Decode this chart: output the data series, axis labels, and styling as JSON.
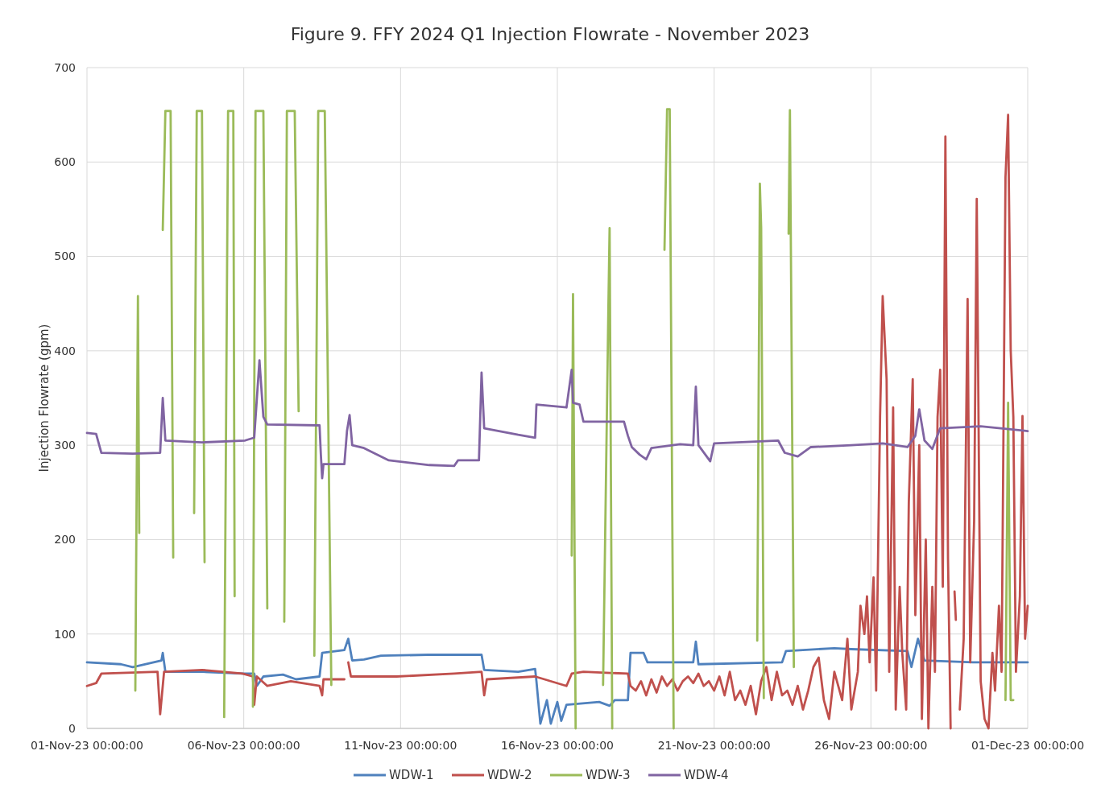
{
  "chart_data": {
    "type": "line",
    "title": "Figure 9.  FFY 2024 Q1 Injection Flowrate - November 2023",
    "ylabel": "Injection Flowrate (gpm)",
    "xlim": [
      "2023-11-01T00:00",
      "2023-12-01T00:00"
    ],
    "xticks": [
      {
        "value": "2023-11-01T00:00",
        "label": "01-Nov-23 00:00:00"
      },
      {
        "value": "2023-11-06T00:00",
        "label": "06-Nov-23 00:00:00"
      },
      {
        "value": "2023-11-11T00:00",
        "label": "11-Nov-23 00:00:00"
      },
      {
        "value": "2023-11-16T00:00",
        "label": "16-Nov-23 00:00:00"
      },
      {
        "value": "2023-11-21T00:00",
        "label": "21-Nov-23 00:00:00"
      },
      {
        "value": "2023-11-26T00:00",
        "label": "26-Nov-23 00:00:00"
      },
      {
        "value": "2023-12-01T00:00",
        "label": "01-Dec-23 00:00:00"
      }
    ],
    "ylim": [
      0,
      700
    ],
    "yticks": [
      0,
      100,
      200,
      300,
      400,
      500,
      600,
      700
    ],
    "grid": true,
    "legend": "bottom",
    "line_style": "solid",
    "marker": "none",
    "series": [
      {
        "name": "WDW-1",
        "color": "#4f81bd",
        "x": [
          "2023-11-01T00:00",
          "2023-11-02T02:00",
          "2023-11-02T11:00",
          "2023-11-03T09:00",
          "2023-11-03T10:00",
          "2023-11-03T12:00",
          "2023-11-04T16:00",
          "2023-11-05T23:00",
          "2023-11-06T08:00",
          "2023-11-06T10:00",
          "2023-11-06T15:00",
          "2023-11-07T06:00",
          "2023-11-07T16:00",
          "2023-11-08T10:00",
          "2023-11-08T12:00",
          "2023-11-09T05:00",
          "2023-11-09T08:00",
          "2023-11-09T11:00",
          "2023-11-09T20:00",
          "2023-11-10T09:00",
          "2023-11-11T21:00",
          "2023-11-13T14:00",
          "2023-11-13T16:00",
          "2023-11-14T18:00",
          "2023-11-15T07:00",
          "2023-11-15T08:00",
          "2023-11-15T11:00",
          "2023-11-15T16:00",
          "2023-11-15T19:00",
          "2023-11-16T00:00",
          "2023-11-16T03:00",
          "2023-11-16T07:00",
          "2023-11-17T08:00",
          "2023-11-17T16:00",
          "2023-11-17T20:00",
          "2023-11-18T06:00",
          "2023-11-18T08:00",
          "2023-11-18T18:00",
          "2023-11-18T21:00",
          "2023-11-20T08:00",
          "2023-11-20T10:00",
          "2023-11-20T12:00",
          "2023-11-23T04:00",
          "2023-11-23T07:00",
          "2023-11-24T20:00",
          "2023-11-25T09:00",
          "2023-11-27T04:00",
          "2023-11-27T07:00",
          "2023-11-27T12:00",
          "2023-11-27T17:00",
          "2023-11-29T06:00",
          "2023-12-01T00:00"
        ],
        "values": [
          70,
          68,
          65,
          72,
          80,
          60,
          60,
          58,
          58,
          45,
          55,
          57,
          52,
          55,
          80,
          83,
          95,
          72,
          73,
          77,
          78,
          78,
          62,
          60,
          63,
          50,
          5,
          30,
          5,
          28,
          8,
          25,
          28,
          24,
          30,
          30,
          80,
          80,
          70,
          70,
          92,
          68,
          70,
          82,
          85,
          84,
          82,
          65,
          95,
          72,
          70,
          70
        ]
      },
      {
        "name": "WDW-2",
        "color": "#c0504d",
        "x": [
          "2023-11-01T00:00",
          "2023-11-01T07:00",
          "2023-11-01T11:00",
          "2023-11-03T06:00",
          "2023-11-03T08:00",
          "2023-11-03T11:00",
          "2023-11-04T16:00",
          "2023-11-05T23:00",
          "2023-11-06T07:00",
          "2023-11-06T08:00",
          "2023-11-06T10:00",
          "2023-11-06T18:00",
          "2023-11-07T12:00",
          "2023-11-08T10:00",
          "2023-11-08T12:00",
          "2023-11-08T13:00",
          "2023-11-09T05:00",
          "2023-11-09T06:00",
          "2023-11-09T08:00",
          "2023-11-09T10:00",
          "2023-11-10T21:00",
          "2023-11-12T17:00",
          "2023-11-13T14:00",
          "2023-11-13T16:00",
          "2023-11-13T18:00",
          "2023-11-15T07:00",
          "2023-11-16T07:00",
          "2023-11-16T11:00",
          "2023-11-16T20:00",
          "2023-11-18T06:00",
          "2023-11-18T08:00",
          "2023-11-18T12:00",
          "2023-11-18T16:00",
          "2023-11-18T20:00",
          "2023-11-19T00:00",
          "2023-11-19T04:00",
          "2023-11-19T08:00",
          "2023-11-19T12:00",
          "2023-11-19T16:00",
          "2023-11-19T20:00",
          "2023-11-20T00:00",
          "2023-11-20T04:00",
          "2023-11-20T08:00",
          "2023-11-20T12:00",
          "2023-11-20T16:00",
          "2023-11-20T20:00",
          "2023-11-21T00:00",
          "2023-11-21T04:00",
          "2023-11-21T08:00",
          "2023-11-21T12:00",
          "2023-11-21T16:00",
          "2023-11-21T20:00",
          "2023-11-22T00:00",
          "2023-11-22T04:00",
          "2023-11-22T08:00",
          "2023-11-22T12:00",
          "2023-11-22T16:00",
          "2023-11-22T20:00",
          "2023-11-23T00:00",
          "2023-11-23T04:00",
          "2023-11-23T08:00",
          "2023-11-23T12:00",
          "2023-11-23T16:00",
          "2023-11-23T20:00",
          "2023-11-24T00:00",
          "2023-11-24T04:00",
          "2023-11-24T08:00",
          "2023-11-24T12:00",
          "2023-11-24T16:00",
          "2023-11-24T20:00",
          "2023-11-25T00:00",
          "2023-11-25T02:00",
          "2023-11-25T06:00",
          "2023-11-25T09:00",
          "2023-11-25T14:00",
          "2023-11-25T16:00",
          "2023-11-25T19:00",
          "2023-11-25T21:00",
          "2023-11-25T23:00",
          "2023-11-26T02:00",
          "2023-11-26T04:00",
          "2023-11-26T07:00",
          "2023-11-26T09:00",
          "2023-11-26T12:00",
          "2023-11-26T14:00",
          "2023-11-26T17:00",
          "2023-11-26T19:00",
          "2023-11-26T22:00",
          "2023-11-27T00:00",
          "2023-11-27T03:00",
          "2023-11-27T05:00",
          "2023-11-27T08:00",
          "2023-11-27T10:00",
          "2023-11-27T13:00",
          "2023-11-27T15:00",
          "2023-11-27T18:00",
          "2023-11-27T20:00",
          "2023-11-27T23:00",
          "2023-11-28T01:00",
          "2023-11-28T03:00",
          "2023-11-28T05:00",
          "2023-11-28T07:00",
          "2023-11-28T09:00",
          "2023-11-28T11:00",
          "2023-11-28T13:00",
          "2023-11-28T14:00",
          "2023-11-28T16:00",
          "2023-11-28T17:00",
          "2023-11-28T18:00",
          "2023-11-28T20:00",
          "2023-11-28T23:00",
          "2023-11-29T02:00",
          "2023-11-29T04:00",
          "2023-11-29T07:00",
          "2023-11-29T09:00",
          "2023-11-29T12:00",
          "2023-11-29T15:00",
          "2023-11-29T18:00",
          "2023-11-29T21:00",
          "2023-11-29T23:00",
          "2023-11-30T02:00",
          "2023-11-30T04:00",
          "2023-11-30T07:00",
          "2023-11-30T09:00",
          "2023-11-30T11:00",
          "2023-11-30T13:00",
          "2023-11-30T15:00",
          "2023-11-30T18:00",
          "2023-11-30T20:00",
          "2023-11-30T22:00",
          "2023-12-01T00:00"
        ],
        "values": [
          45,
          48,
          58,
          60,
          15,
          60,
          62,
          58,
          55,
          25,
          55,
          45,
          50,
          45,
          35,
          52,
          52,
          null,
          70,
          55,
          55,
          58,
          60,
          35,
          52,
          55,
          45,
          58,
          60,
          58,
          45,
          40,
          50,
          35,
          52,
          38,
          55,
          45,
          52,
          40,
          50,
          55,
          48,
          58,
          45,
          50,
          40,
          55,
          35,
          60,
          30,
          40,
          25,
          45,
          15,
          50,
          65,
          30,
          60,
          35,
          40,
          25,
          45,
          20,
          40,
          65,
          75,
          30,
          10,
          60,
          40,
          30,
          95,
          20,
          60,
          130,
          100,
          140,
          70,
          160,
          40,
          330,
          458,
          370,
          60,
          340,
          20,
          150,
          80,
          20,
          240,
          370,
          120,
          300,
          10,
          200,
          0,
          150,
          60,
          330,
          380,
          150,
          627,
          180,
          0,
          null,
          145,
          115,
          null,
          20,
          95,
          455,
          70,
          220,
          561,
          50,
          10,
          0,
          80,
          40,
          130,
          60,
          584,
          650,
          400,
          330,
          60,
          140,
          331,
          95,
          130
        ]
      },
      {
        "name": "WDW-3",
        "color": "#9bbb59",
        "x": [
          "2023-11-02T13:00",
          "2023-11-02T15:00",
          "2023-11-02T16:00",
          "2023-11-02T17:00",
          "2023-11-03T10:00",
          "2023-11-03T12:00",
          "2023-11-03T16:00",
          "2023-11-03T18:00",
          "2023-11-03T19:00",
          "2023-11-04T10:00",
          "2023-11-04T12:00",
          "2023-11-04T16:00",
          "2023-11-04T18:00",
          "2023-11-04T19:00",
          "2023-11-05T09:00",
          "2023-11-05T12:00",
          "2023-11-05T16:00",
          "2023-11-05T17:00",
          "2023-11-05T18:00",
          "2023-11-06T07:00",
          "2023-11-06T09:00",
          "2023-11-06T15:00",
          "2023-11-06T18:00",
          "2023-11-06T19:00",
          "2023-11-07T07:00",
          "2023-11-07T09:00",
          "2023-11-07T15:00",
          "2023-11-07T18:00",
          "2023-11-07T19:00",
          "2023-11-08T06:00",
          "2023-11-08T09:00",
          "2023-11-08T14:00",
          "2023-11-08T19:00",
          "2023-11-08T20:00",
          "2023-11-16T11:00",
          "2023-11-16T12:00",
          "2023-11-16T14:00",
          "2023-11-16T15:00",
          "2023-11-17T11:00",
          "2023-11-17T15:00",
          "2023-11-17T16:00",
          "2023-11-17T18:00",
          "2023-11-17T19:00",
          "2023-11-19T10:00",
          "2023-11-19T12:00",
          "2023-11-19T14:00",
          "2023-11-19T17:00",
          "2023-11-19T18:00",
          "2023-11-22T09:00",
          "2023-11-22T11:00",
          "2023-11-22T12:00",
          "2023-11-22T14:00",
          "2023-11-22T15:00",
          "2023-11-23T09:00",
          "2023-11-23T10:00",
          "2023-11-23T13:00",
          "2023-11-23T14:00",
          "2023-11-30T07:00",
          "2023-11-30T09:00",
          "2023-11-30T11:00",
          "2023-11-30T13:00"
        ],
        "values": [
          40,
          458,
          207,
          null,
          528,
          654,
          654,
          181,
          null,
          228,
          654,
          654,
          176,
          null,
          12,
          654,
          654,
          140,
          null,
          23,
          654,
          654,
          127,
          null,
          113,
          654,
          654,
          336,
          null,
          77,
          654,
          654,
          46,
          null,
          183,
          460,
          0,
          null,
          46,
          440,
          530,
          0,
          null,
          507,
          656,
          656,
          0,
          null,
          93,
          577,
          530,
          32,
          null,
          524,
          655,
          65,
          null,
          30,
          345,
          30,
          30
        ]
      },
      {
        "name": "WDW-4",
        "color": "#8064a2",
        "x": [
          "2023-11-01T00:00",
          "2023-11-01T07:00",
          "2023-11-01T11:00",
          "2023-11-02T11:00",
          "2023-11-03T08:00",
          "2023-11-03T10:00",
          "2023-11-03T12:00",
          "2023-11-04T16:00",
          "2023-11-06T01:00",
          "2023-11-06T08:00",
          "2023-11-06T12:00",
          "2023-11-06T15:00",
          "2023-11-06T18:00",
          "2023-11-08T10:00",
          "2023-11-08T11:00",
          "2023-11-08T12:00",
          "2023-11-08T13:00",
          "2023-11-09T05:00",
          "2023-11-09T07:00",
          "2023-11-09T09:00",
          "2023-11-09T11:00",
          "2023-11-09T20:00",
          "2023-11-10T15:00",
          "2023-11-11T22:00",
          "2023-11-12T17:00",
          "2023-11-12T20:00",
          "2023-11-13T12:00",
          "2023-11-13T14:00",
          "2023-11-13T16:00",
          "2023-11-14T18:00",
          "2023-11-15T07:00",
          "2023-11-15T08:00",
          "2023-11-16T07:00",
          "2023-11-16T11:00",
          "2023-11-16T12:00",
          "2023-11-16T17:00",
          "2023-11-16T20:00",
          "2023-11-18T03:00",
          "2023-11-18T06:00",
          "2023-11-18T09:00",
          "2023-11-18T15:00",
          "2023-11-18T20:00",
          "2023-11-19T00:00",
          "2023-11-19T22:00",
          "2023-11-20T08:00",
          "2023-11-20T10:00",
          "2023-11-20T12:00",
          "2023-11-20T21:00",
          "2023-11-21T00:00",
          "2023-11-23T01:00",
          "2023-11-23T06:00",
          "2023-11-23T16:00",
          "2023-11-24T02:00",
          "2023-11-25T09:00",
          "2023-11-26T09:00",
          "2023-11-27T04:00",
          "2023-11-27T10:00",
          "2023-11-27T13:00",
          "2023-11-27T17:00",
          "2023-11-27T23:00",
          "2023-11-28T05:00",
          "2023-11-29T12:00",
          "2023-12-01T00:00"
        ],
        "values": [
          313,
          312,
          292,
          291,
          292,
          350,
          305,
          303,
          305,
          308,
          390,
          330,
          322,
          321,
          290,
          265,
          280,
          280,
          315,
          332,
          300,
          297,
          284,
          279,
          278,
          284,
          284,
          377,
          318,
          311,
          308,
          343,
          340,
          380,
          345,
          343,
          325,
          325,
          310,
          298,
          290,
          285,
          297,
          301,
          300,
          362,
          300,
          283,
          302,
          305,
          292,
          288,
          298,
          300,
          302,
          298,
          310,
          338,
          305,
          296,
          318,
          320,
          315
        ]
      }
    ]
  }
}
